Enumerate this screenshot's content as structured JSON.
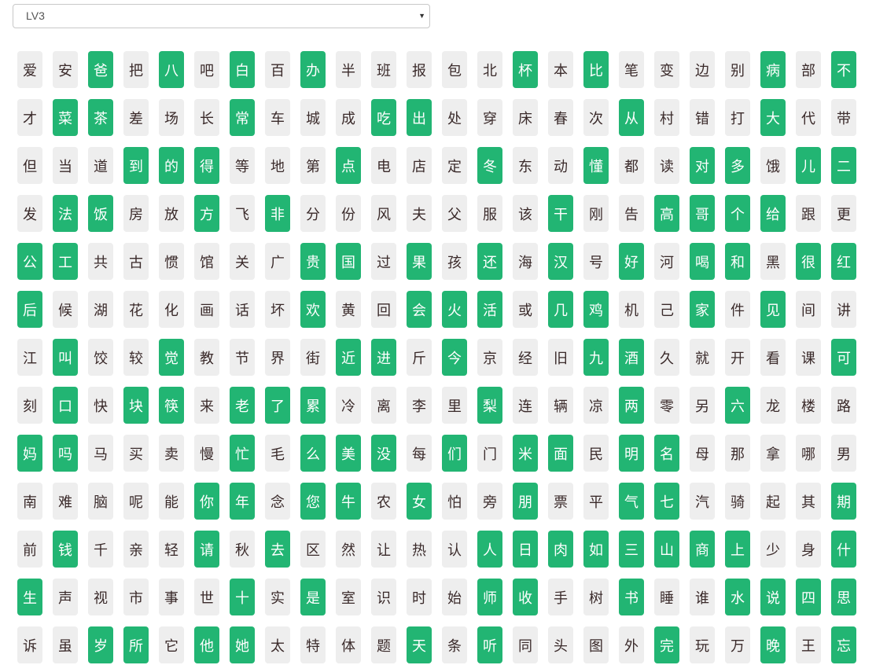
{
  "level_select": {
    "value": "LV3"
  },
  "colors": {
    "highlight": "#22b573",
    "default": "#eeeeee"
  },
  "rows": [
    {
      "chars": [
        "爱",
        "安",
        "爸",
        "把",
        "八",
        "吧",
        "白",
        "百",
        "办",
        "半",
        "班",
        "报",
        "包",
        "北",
        "杯",
        "本",
        "比",
        "笔",
        "变",
        "边",
        "别",
        "病",
        "部",
        "不"
      ],
      "highlighted": [
        2,
        4,
        6,
        8,
        14,
        16,
        21,
        23
      ]
    },
    {
      "chars": [
        "才",
        "菜",
        "茶",
        "差",
        "场",
        "长",
        "常",
        "车",
        "城",
        "成",
        "吃",
        "出",
        "处",
        "穿",
        "床",
        "春",
        "次",
        "从",
        "村",
        "错",
        "打",
        "大",
        "代",
        "带"
      ],
      "highlighted": [
        1,
        2,
        6,
        10,
        11,
        17,
        21
      ]
    },
    {
      "chars": [
        "但",
        "当",
        "道",
        "到",
        "的",
        "得",
        "等",
        "地",
        "第",
        "点",
        "电",
        "店",
        "定",
        "冬",
        "东",
        "动",
        "懂",
        "都",
        "读",
        "对",
        "多",
        "饿",
        "儿",
        "二"
      ],
      "highlighted": [
        3,
        4,
        5,
        9,
        13,
        16,
        19,
        20,
        22,
        23
      ]
    },
    {
      "chars": [
        "发",
        "法",
        "饭",
        "房",
        "放",
        "方",
        "飞",
        "非",
        "分",
        "份",
        "风",
        "夫",
        "父",
        "服",
        "该",
        "干",
        "刚",
        "告",
        "高",
        "哥",
        "个",
        "给",
        "跟",
        "更"
      ],
      "highlighted": [
        1,
        2,
        5,
        7,
        15,
        18,
        19,
        20,
        21
      ]
    },
    {
      "chars": [
        "公",
        "工",
        "共",
        "古",
        "惯",
        "馆",
        "关",
        "广",
        "贵",
        "国",
        "过",
        "果",
        "孩",
        "还",
        "海",
        "汉",
        "号",
        "好",
        "河",
        "喝",
        "和",
        "黑",
        "很",
        "红"
      ],
      "highlighted": [
        0,
        1,
        8,
        9,
        11,
        13,
        15,
        17,
        19,
        20,
        22,
        23
      ]
    },
    {
      "chars": [
        "后",
        "候",
        "湖",
        "花",
        "化",
        "画",
        "话",
        "坏",
        "欢",
        "黄",
        "回",
        "会",
        "火",
        "活",
        "或",
        "几",
        "鸡",
        "机",
        "己",
        "家",
        "件",
        "见",
        "间",
        "讲"
      ],
      "highlighted": [
        0,
        8,
        11,
        12,
        13,
        15,
        16,
        19,
        21
      ]
    },
    {
      "chars": [
        "江",
        "叫",
        "饺",
        "较",
        "觉",
        "教",
        "节",
        "界",
        "街",
        "近",
        "进",
        "斤",
        "今",
        "京",
        "经",
        "旧",
        "九",
        "酒",
        "久",
        "就",
        "开",
        "看",
        "课",
        "可"
      ],
      "highlighted": [
        1,
        4,
        9,
        10,
        12,
        16,
        17,
        23
      ]
    },
    {
      "chars": [
        "刻",
        "口",
        "快",
        "块",
        "筷",
        "来",
        "老",
        "了",
        "累",
        "冷",
        "离",
        "李",
        "里",
        "梨",
        "连",
        "辆",
        "凉",
        "两",
        "零",
        "另",
        "六",
        "龙",
        "楼",
        "路"
      ],
      "highlighted": [
        1,
        3,
        4,
        6,
        7,
        8,
        13,
        17,
        20
      ]
    },
    {
      "chars": [
        "妈",
        "吗",
        "马",
        "买",
        "卖",
        "慢",
        "忙",
        "毛",
        "么",
        "美",
        "没",
        "每",
        "们",
        "门",
        "米",
        "面",
        "民",
        "明",
        "名",
        "母",
        "那",
        "拿",
        "哪",
        "男"
      ],
      "highlighted": [
        0,
        1,
        6,
        8,
        9,
        10,
        12,
        14,
        15,
        17,
        18
      ]
    },
    {
      "chars": [
        "南",
        "难",
        "脑",
        "呢",
        "能",
        "你",
        "年",
        "念",
        "您",
        "牛",
        "农",
        "女",
        "怕",
        "旁",
        "朋",
        "票",
        "平",
        "气",
        "七",
        "汽",
        "骑",
        "起",
        "其",
        "期"
      ],
      "highlighted": [
        5,
        6,
        8,
        9,
        11,
        14,
        17,
        18,
        23
      ]
    },
    {
      "chars": [
        "前",
        "钱",
        "千",
        "亲",
        "轻",
        "请",
        "秋",
        "去",
        "区",
        "然",
        "让",
        "热",
        "认",
        "人",
        "日",
        "肉",
        "如",
        "三",
        "山",
        "商",
        "上",
        "少",
        "身",
        "什"
      ],
      "highlighted": [
        1,
        5,
        7,
        13,
        14,
        15,
        16,
        17,
        18,
        19,
        20,
        23
      ]
    },
    {
      "chars": [
        "生",
        "声",
        "视",
        "市",
        "事",
        "世",
        "十",
        "实",
        "是",
        "室",
        "识",
        "时",
        "始",
        "师",
        "收",
        "手",
        "树",
        "书",
        "睡",
        "谁",
        "水",
        "说",
        "四",
        "思"
      ],
      "highlighted": [
        0,
        6,
        8,
        13,
        14,
        17,
        20,
        21,
        22,
        23
      ]
    },
    {
      "chars": [
        "诉",
        "虽",
        "岁",
        "所",
        "它",
        "他",
        "她",
        "太",
        "特",
        "体",
        "题",
        "天",
        "条",
        "听",
        "同",
        "头",
        "图",
        "外",
        "完",
        "玩",
        "万",
        "晚",
        "王",
        "忘"
      ],
      "highlighted": [
        2,
        3,
        5,
        6,
        11,
        13,
        18,
        21,
        23
      ]
    }
  ]
}
